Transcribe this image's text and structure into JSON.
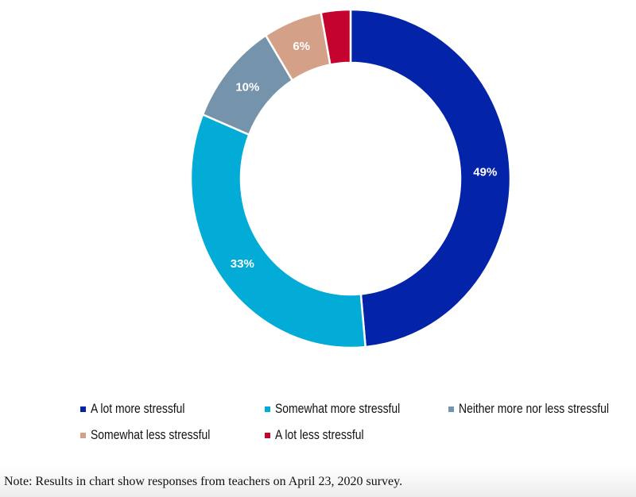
{
  "chart_data": {
    "type": "pie",
    "variant": "donut",
    "start": "top",
    "direction": "clockwise",
    "slices": [
      {
        "label": "A lot more stressful",
        "value": 49,
        "display": "49%",
        "color": "#0324a8"
      },
      {
        "label": "Somewhat more stressful",
        "value": 33,
        "display": "33%",
        "color": "#02acd6"
      },
      {
        "label": "Neither more nor less stressful",
        "value": 10,
        "display": "10%",
        "color": "#7594ab"
      },
      {
        "label": "Somewhat less stressful",
        "value": 6,
        "display": "6%",
        "color": "#d4a088"
      },
      {
        "label": "A lot less stressful",
        "value": 3,
        "display": "",
        "color": "#c4042e"
      }
    ],
    "legend_position": "bottom"
  },
  "note": "Note: Results in chart show responses from teachers on April 23, 2020 survey."
}
